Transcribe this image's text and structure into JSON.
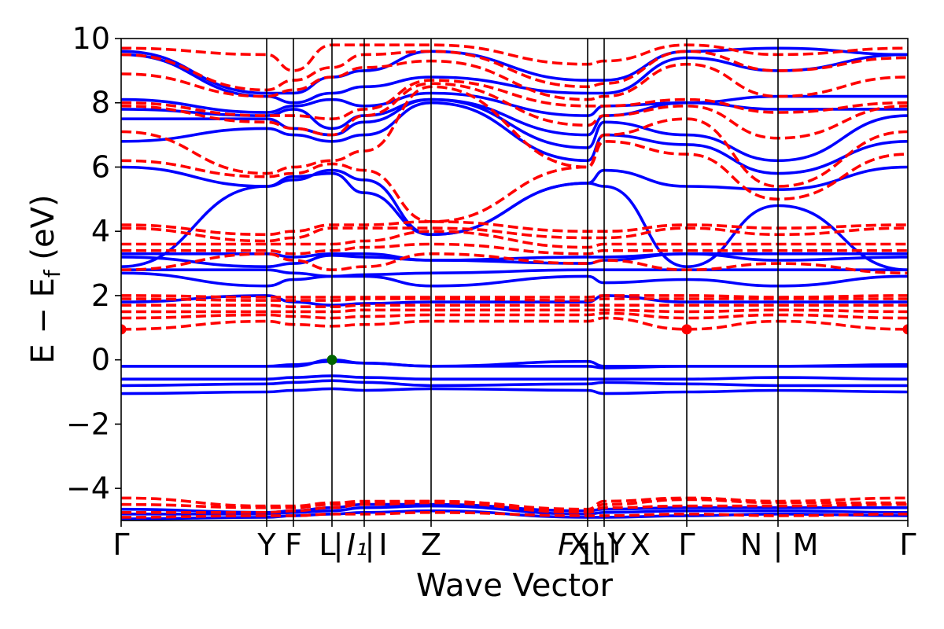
{
  "chart_data": {
    "type": "line",
    "title": "",
    "xlabel": "Wave Vector",
    "ylabel": "E − E_f (eV)",
    "ylabel_parts": {
      "main": "E − E",
      "sub": "f",
      "unit": " (eV)"
    },
    "ylim": [
      -5,
      10
    ],
    "yticks": [
      -4,
      -2,
      0,
      2,
      4,
      6,
      8,
      10
    ],
    "ytick_labels": [
      "−4",
      "−2",
      "0",
      "2",
      "4",
      "6",
      "8",
      "10"
    ],
    "grid": false,
    "legend": "none",
    "kpath": [
      {
        "label": "Γ",
        "x": 0.0
      },
      {
        "label": "Y",
        "x": 0.185
      },
      {
        "label": "F",
        "x": 0.219
      },
      {
        "label": "L",
        "x": 0.268
      },
      {
        "label": "I",
        "x": 0.309
      },
      {
        "label": "Z",
        "x": 0.394
      },
      {
        "label": "F",
        "x": 0.593
      },
      {
        "label": "Y",
        "x": 0.614
      },
      {
        "label": "Γ",
        "x": 0.719
      },
      {
        "label": "N",
        "x": 0.835
      },
      {
        "label": "Γ",
        "x": 1.0
      }
    ],
    "kpath_tick_labels": [
      {
        "text": "Γ",
        "x": 0.0
      },
      {
        "text": "Y",
        "x": 0.185
      },
      {
        "text": "F",
        "x": 0.219
      },
      {
        "text": "L",
        "x": 0.262
      },
      {
        "text": "|",
        "x": 0.276
      },
      {
        "text": "I₁",
        "x": 0.3
      },
      {
        "text": "|",
        "x": 0.316
      },
      {
        "text": "I",
        "x": 0.333
      },
      {
        "text": "Z",
        "x": 0.394
      },
      {
        "text": "F",
        "x": 0.566
      },
      {
        "text": "X",
        "x": 0.582
      },
      {
        "text": "1",
        "x": 0.591
      },
      {
        "text": "|",
        "x": 0.603
      },
      {
        "text": "1",
        "x": 0.611
      },
      {
        "text": "|",
        "x": 0.625
      },
      {
        "text": "Y",
        "x": 0.63
      },
      {
        "text": "X",
        "x": 0.66
      },
      {
        "text": "Γ",
        "x": 0.719
      },
      {
        "text": "N",
        "x": 0.801
      },
      {
        "text": "|",
        "x": 0.835
      },
      {
        "text": "M",
        "x": 0.87
      },
      {
        "text": "Γ",
        "x": 1.0
      }
    ],
    "series": [
      {
        "name": "",
        "color": "#0000ff",
        "style": "solid",
        "bands": [
          [
            -1.05,
            -1.0,
            -0.95,
            -0.9,
            -0.95,
            -0.9,
            -0.95,
            -1.05,
            -1.0,
            -0.95,
            -1.0
          ],
          [
            -0.8,
            -0.75,
            -0.7,
            -0.65,
            -0.7,
            -0.8,
            -0.75,
            -0.7,
            -0.75,
            -0.8,
            -0.8
          ],
          [
            -0.6,
            -0.6,
            -0.55,
            -0.5,
            -0.55,
            -0.6,
            -0.6,
            -0.6,
            -0.6,
            -0.55,
            -0.6
          ],
          [
            -0.2,
            -0.2,
            -0.15,
            -0.05,
            -0.1,
            -0.2,
            -0.2,
            -0.25,
            -0.2,
            -0.2,
            -0.15
          ],
          [
            -0.2,
            -0.2,
            -0.2,
            0.0,
            -0.1,
            -0.2,
            -0.05,
            -0.2,
            -0.2,
            -0.2,
            -0.2
          ],
          [
            1.8,
            2.0,
            1.8,
            1.7,
            1.75,
            1.8,
            1.8,
            2.0,
            1.8,
            1.8,
            1.8
          ],
          [
            2.7,
            2.3,
            2.5,
            2.6,
            2.6,
            2.3,
            2.6,
            2.4,
            2.5,
            2.3,
            2.6
          ],
          [
            2.8,
            2.8,
            2.7,
            2.6,
            2.65,
            2.7,
            2.8,
            2.8,
            2.8,
            2.8,
            2.8
          ],
          [
            3.2,
            2.9,
            3.0,
            3.25,
            3.2,
            3.1,
            3.0,
            3.1,
            3.3,
            3.1,
            3.2
          ],
          [
            3.3,
            3.3,
            3.2,
            3.3,
            3.3,
            3.1,
            3.2,
            3.2,
            3.3,
            3.3,
            3.3
          ],
          [
            2.9,
            5.4,
            5.7,
            5.8,
            5.2,
            3.9,
            5.5,
            5.4,
            2.9,
            4.8,
            2.8
          ],
          [
            6.0,
            5.4,
            5.6,
            5.9,
            5.6,
            3.9,
            5.5,
            5.9,
            5.4,
            5.3,
            6.0
          ],
          [
            6.8,
            7.2,
            7.0,
            6.8,
            7.0,
            8.0,
            6.2,
            7.0,
            6.7,
            5.8,
            6.8
          ],
          [
            7.5,
            7.5,
            7.2,
            7.0,
            7.4,
            8.1,
            6.6,
            7.4,
            7.0,
            6.2,
            7.6
          ],
          [
            7.8,
            7.6,
            7.8,
            7.2,
            7.6,
            8.1,
            7.0,
            7.6,
            8.0,
            7.8,
            7.8
          ],
          [
            8.1,
            7.7,
            7.9,
            8.1,
            7.9,
            8.3,
            7.6,
            7.9,
            8.0,
            8.2,
            8.2
          ],
          [
            9.5,
            8.2,
            8.0,
            8.3,
            8.5,
            8.8,
            8.3,
            8.3,
            9.4,
            9.0,
            9.5
          ],
          [
            9.6,
            8.3,
            8.3,
            8.8,
            9.0,
            9.6,
            8.7,
            8.7,
            9.6,
            9.7,
            9.5
          ],
          [
            -4.95,
            -4.9,
            -4.85,
            -4.8,
            -4.75,
            -4.7,
            -4.9,
            -4.9,
            -4.85,
            -4.8,
            -4.85
          ],
          [
            -4.8,
            -4.8,
            -4.75,
            -4.7,
            -4.6,
            -4.55,
            -4.8,
            -4.75,
            -4.7,
            -4.7,
            -4.75
          ],
          [
            -4.65,
            -4.75,
            -4.7,
            -4.6,
            -4.5,
            -4.5,
            -4.7,
            -4.65,
            -4.6,
            -4.6,
            -4.6
          ]
        ]
      },
      {
        "name": "",
        "color": "#ff0000",
        "style": "dashed",
        "bands": [
          [
            0.95,
            1.2,
            1.1,
            1.05,
            1.1,
            1.2,
            1.2,
            1.3,
            0.95,
            1.2,
            0.95
          ],
          [
            1.3,
            1.4,
            1.35,
            1.3,
            1.35,
            1.4,
            1.4,
            1.45,
            1.3,
            1.4,
            1.3
          ],
          [
            1.5,
            1.5,
            1.5,
            1.5,
            1.55,
            1.55,
            1.55,
            1.55,
            1.5,
            1.55,
            1.5
          ],
          [
            1.7,
            1.7,
            1.65,
            1.65,
            1.7,
            1.7,
            1.7,
            1.7,
            1.7,
            1.7,
            1.7
          ],
          [
            1.9,
            1.85,
            1.85,
            1.85,
            1.9,
            1.9,
            1.85,
            1.9,
            1.9,
            1.9,
            1.9
          ],
          [
            2.0,
            1.95,
            1.95,
            1.95,
            1.95,
            1.95,
            1.95,
            2.0,
            2.0,
            1.95,
            2.0
          ],
          [
            2.8,
            3.3,
            3.1,
            2.8,
            2.9,
            3.3,
            3.0,
            3.1,
            2.8,
            3.0,
            2.7
          ],
          [
            3.4,
            3.4,
            3.3,
            3.4,
            3.5,
            3.6,
            3.3,
            3.4,
            3.4,
            3.4,
            3.4
          ],
          [
            3.6,
            3.6,
            3.6,
            3.6,
            3.7,
            4.0,
            3.5,
            3.6,
            3.6,
            3.6,
            3.6
          ],
          [
            4.1,
            3.7,
            3.8,
            4.1,
            4.1,
            4.1,
            3.8,
            3.8,
            4.1,
            3.9,
            4.1
          ],
          [
            4.2,
            3.9,
            4.0,
            4.2,
            4.2,
            4.3,
            4.0,
            4.0,
            4.2,
            4.1,
            4.2
          ],
          [
            6.2,
            5.7,
            5.8,
            6.1,
            5.9,
            4.3,
            6.0,
            6.8,
            6.4,
            5.0,
            6.4
          ],
          [
            7.1,
            5.8,
            6.0,
            6.2,
            6.5,
            8.5,
            6.0,
            7.0,
            7.5,
            5.4,
            7.1
          ],
          [
            7.9,
            7.4,
            7.2,
            7.0,
            7.6,
            8.6,
            7.3,
            7.6,
            7.9,
            6.9,
            7.9
          ],
          [
            8.0,
            7.6,
            7.6,
            7.5,
            7.8,
            8.7,
            7.9,
            7.9,
            8.1,
            7.7,
            8.0
          ],
          [
            8.9,
            8.2,
            8.4,
            8.8,
            9.1,
            9.3,
            8.1,
            8.2,
            9.2,
            8.2,
            8.8
          ],
          [
            9.5,
            8.4,
            8.7,
            9.1,
            9.5,
            9.6,
            8.5,
            8.6,
            9.6,
            9.0,
            9.4
          ],
          [
            9.7,
            9.5,
            9.0,
            9.8,
            9.8,
            9.8,
            9.2,
            9.3,
            9.8,
            9.5,
            9.7
          ],
          [
            -4.75,
            -4.75,
            -4.7,
            -4.6,
            -4.5,
            -4.45,
            -4.75,
            -4.6,
            -4.55,
            -4.55,
            -4.5
          ],
          [
            -4.5,
            -4.6,
            -4.6,
            -4.5,
            -4.45,
            -4.4,
            -4.7,
            -4.5,
            -4.35,
            -4.45,
            -4.45
          ],
          [
            -4.3,
            -4.55,
            -4.55,
            -4.45,
            -4.4,
            -4.4,
            -4.65,
            -4.4,
            -4.3,
            -4.4,
            -4.3
          ],
          [
            -4.9,
            -4.85,
            -4.85,
            -4.8,
            -4.8,
            -4.75,
            -4.85,
            -4.85,
            -4.8,
            -4.85,
            -4.8
          ]
        ]
      }
    ],
    "markers": [
      {
        "x": 0.0,
        "y": 0.95,
        "color": "#ff0000"
      },
      {
        "x": 0.719,
        "y": 0.95,
        "color": "#ff0000"
      },
      {
        "x": 1.0,
        "y": 0.95,
        "color": "#ff0000"
      },
      {
        "x": 0.268,
        "y": 0.0,
        "color": "#006400"
      }
    ]
  }
}
